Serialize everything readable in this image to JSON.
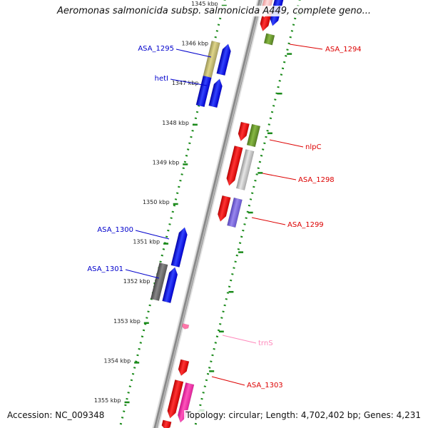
{
  "title": "Aeromonas salmonicida subsp. salmonicida A449, complete geno...",
  "footer": {
    "accession": "Accession: NC_009348",
    "summary": "Topology: circular; Length: 4,702,402 bp; Genes: 4,231"
  },
  "colors": {
    "backbone": "#8a8a8a",
    "tick_dots": "#1a8a1a",
    "forward_label": "#0000cc",
    "reverse_label": "#dd0000",
    "rna_label": "#ff88bb"
  },
  "ticks": [
    {
      "label": "1345 kbp"
    },
    {
      "label": "1346 kbp"
    },
    {
      "label": "1347 kbp"
    },
    {
      "label": "1348 kbp"
    },
    {
      "label": "1349 kbp"
    },
    {
      "label": "1350 kbp"
    },
    {
      "label": "1351 kbp"
    },
    {
      "label": "1352 kbp"
    },
    {
      "label": "1353 kbp"
    },
    {
      "label": "1354 kbp"
    },
    {
      "label": "1355 kbp"
    }
  ],
  "gene_labels": [
    {
      "name": "ASA_1294",
      "color": "#dd0000"
    },
    {
      "name": "ASA_1295",
      "color": "#0000cc"
    },
    {
      "name": "hetI",
      "color": "#0000cc"
    },
    {
      "name": "nlpC",
      "color": "#dd0000"
    },
    {
      "name": "ASA_1298",
      "color": "#dd0000"
    },
    {
      "name": "ASA_1299",
      "color": "#dd0000"
    },
    {
      "name": "ASA_1300",
      "color": "#0000cc"
    },
    {
      "name": "ASA_1301",
      "color": "#0000cc"
    },
    {
      "name": "trnS",
      "color": "#ff88bb"
    },
    {
      "name": "ASA_1303",
      "color": "#dd0000"
    }
  ]
}
